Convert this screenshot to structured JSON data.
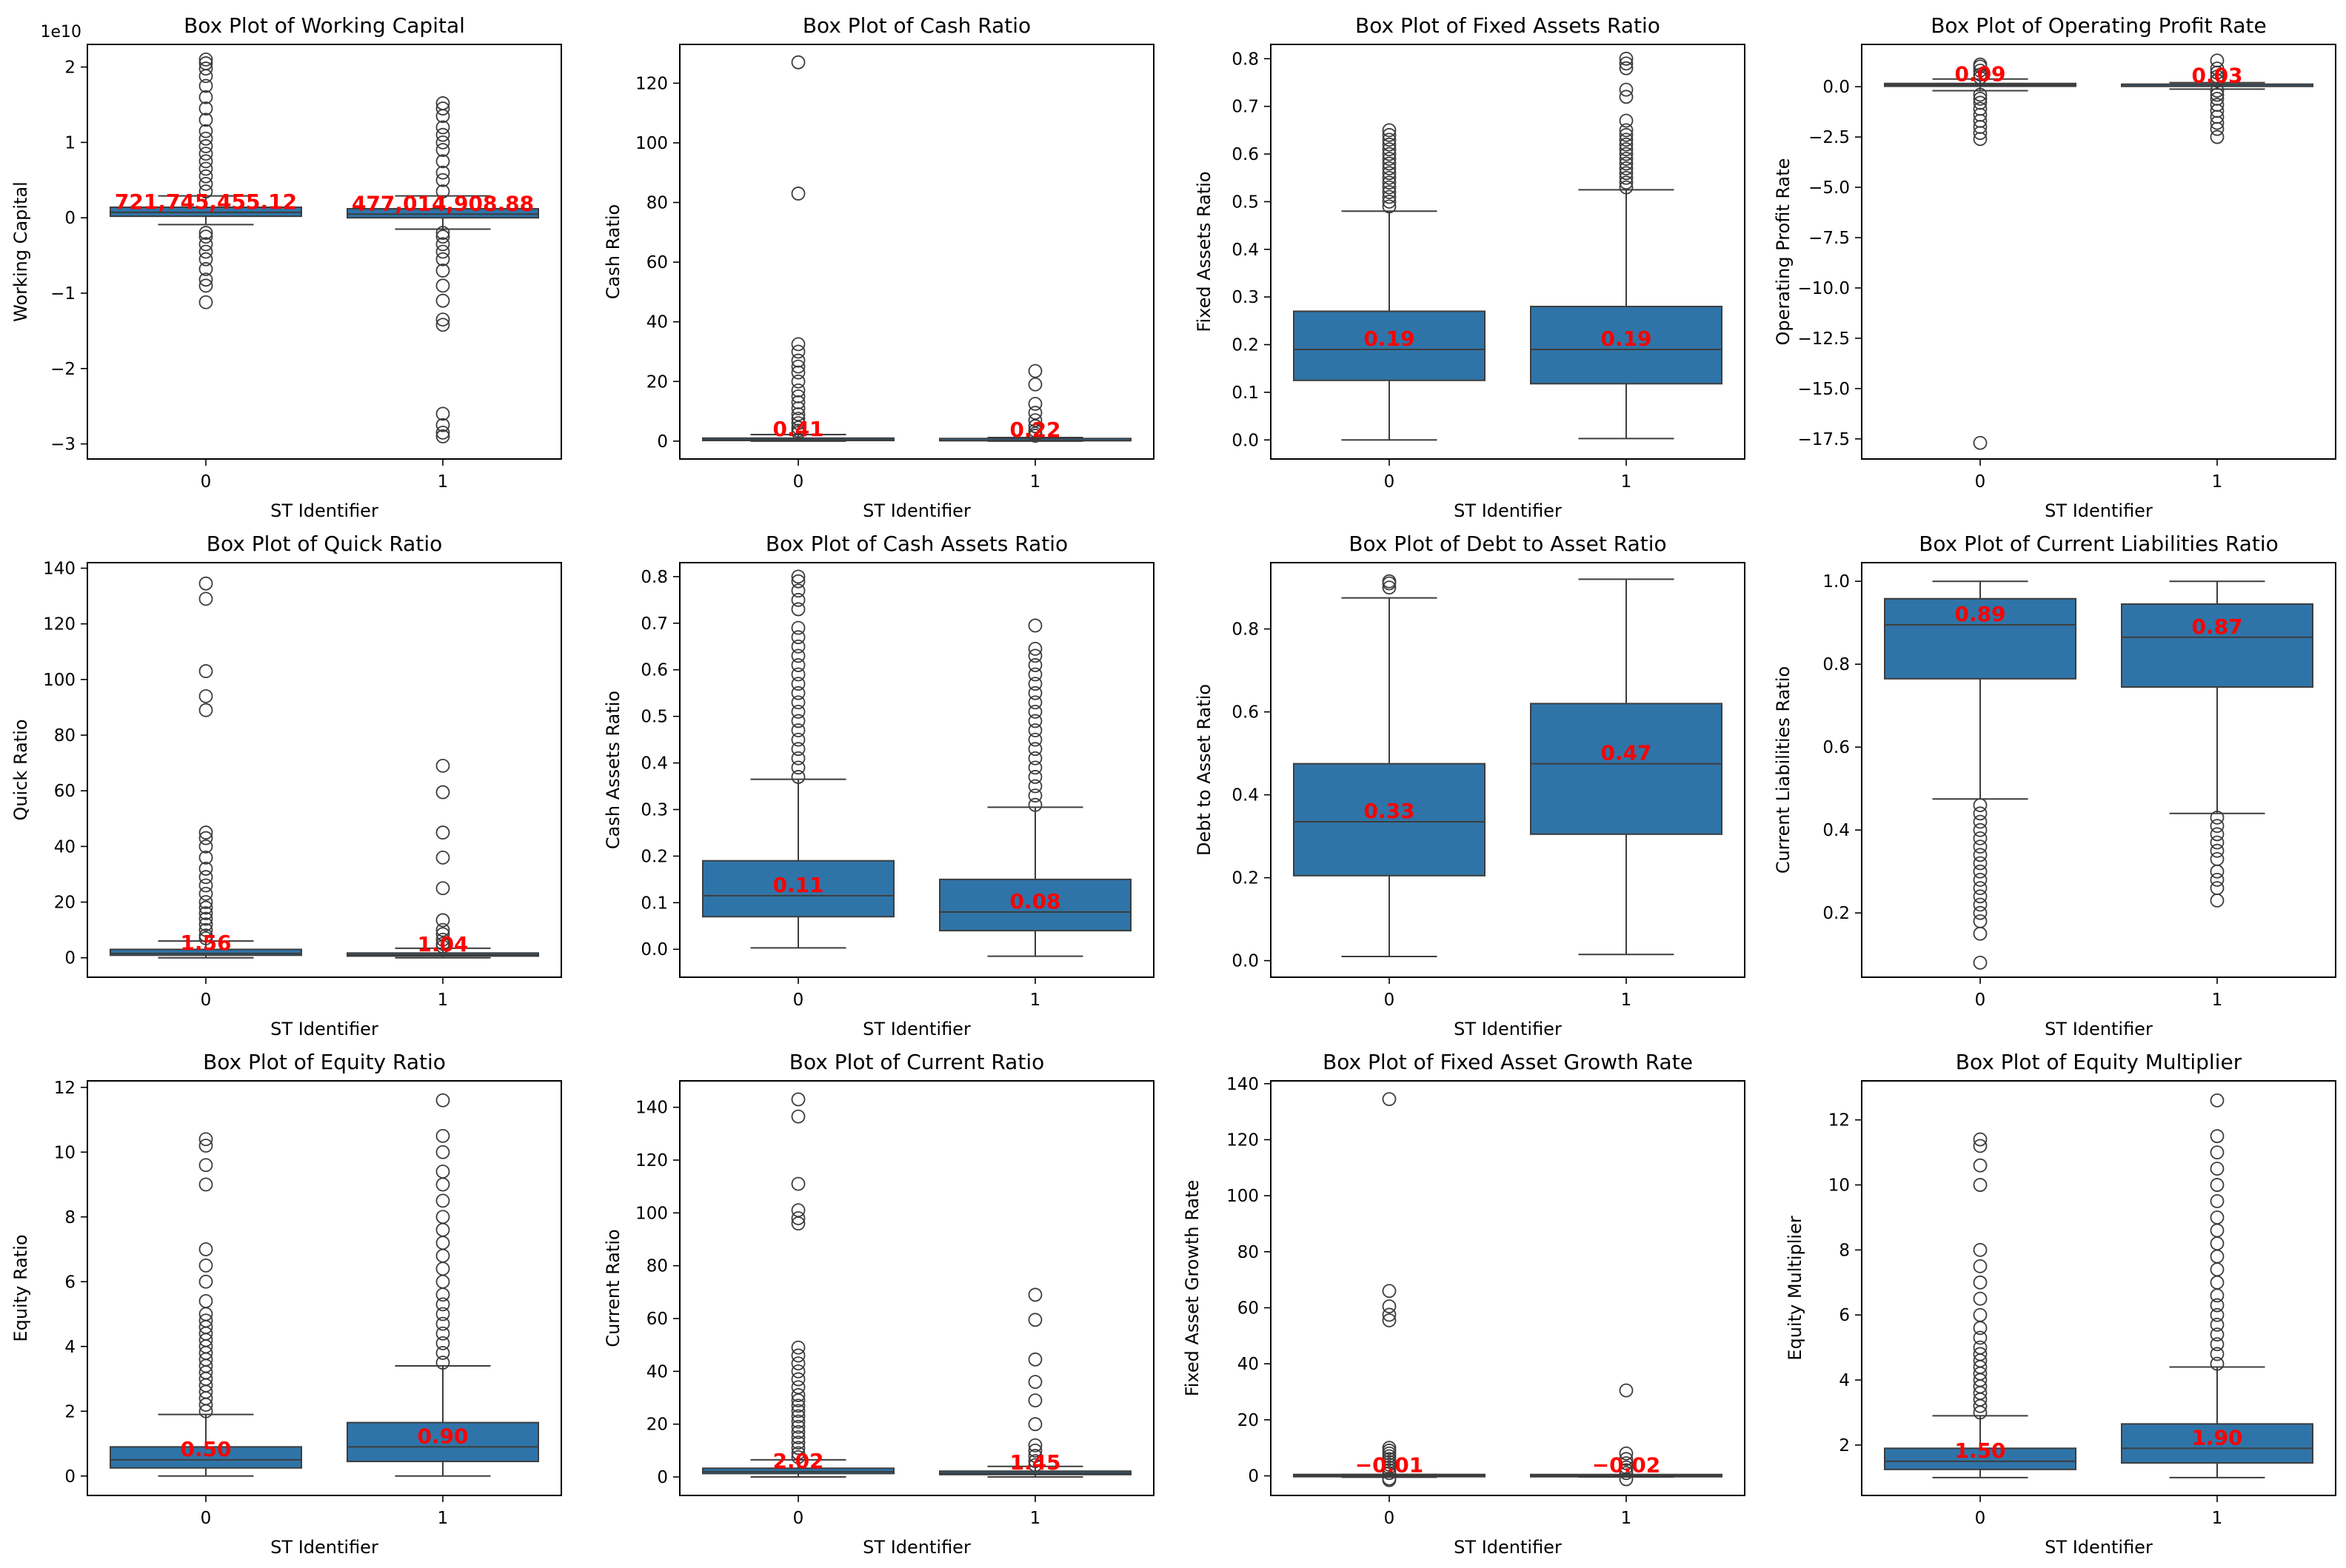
{
  "figure": {
    "colors": {
      "box_fill": "#2f74a8",
      "box_edge": "#3d3d3d",
      "whisker": "#3d3d3d",
      "median_label": "#ff0000",
      "text": "#000000"
    }
  },
  "chart_data": [
    {
      "type": "box",
      "title": "Box Plot of Working Capital",
      "xlabel": "ST Identifier",
      "ylabel": "Working Capital",
      "offset_text": "1e10",
      "categories": [
        "0",
        "1"
      ],
      "ylim": [
        -3.2,
        2.3
      ],
      "yticks": [
        -3,
        -2,
        -1,
        0,
        1,
        2
      ],
      "ytick_labels": [
        "−3",
        "−2",
        "−1",
        "0",
        "1",
        "2"
      ],
      "boxes": [
        {
          "whislo": -0.09,
          "q1": 0.02,
          "med": 0.072,
          "q3": 0.14,
          "whishi": 0.29,
          "label": "721,745,455.12",
          "fliers": [
            -1.12,
            -0.9,
            -0.82,
            -0.68,
            -0.55,
            -0.45,
            -0.35,
            -0.25,
            -0.2,
            0.35,
            0.45,
            0.55,
            0.65,
            0.75,
            0.85,
            0.95,
            1.05,
            1.15,
            1.3,
            1.45,
            1.6,
            1.75,
            1.88,
            1.98,
            2.05,
            2.1
          ]
        },
        {
          "whislo": -0.15,
          "q1": 0.0,
          "med": 0.048,
          "q3": 0.12,
          "whishi": 0.29,
          "label": "477,014,908.88",
          "fliers": [
            -2.9,
            -2.85,
            -2.75,
            -2.6,
            -1.42,
            -1.35,
            -1.1,
            -0.9,
            -0.7,
            -0.55,
            -0.45,
            -0.35,
            -0.25,
            -0.2,
            0.35,
            0.5,
            0.6,
            0.75,
            0.9,
            1.0,
            1.1,
            1.2,
            1.35,
            1.45,
            1.52
          ]
        }
      ]
    },
    {
      "type": "box",
      "title": "Box Plot of Cash Ratio",
      "xlabel": "ST Identifier",
      "ylabel": "Cash Ratio",
      "categories": [
        "0",
        "1"
      ],
      "ylim": [
        -6,
        133
      ],
      "yticks": [
        0,
        20,
        40,
        60,
        80,
        100,
        120
      ],
      "ytick_labels": [
        "0",
        "20",
        "40",
        "60",
        "80",
        "100",
        "120"
      ],
      "boxes": [
        {
          "whislo": 0.0,
          "q1": 0.2,
          "med": 0.41,
          "q3": 1.0,
          "whishi": 2.2,
          "label": "0.41",
          "fliers": [
            2.8,
            3.5,
            4.5,
            6,
            7.5,
            9,
            11,
            13,
            15,
            17,
            20,
            23,
            25,
            27,
            30,
            32.5,
            83,
            127
          ]
        },
        {
          "whislo": 0.0,
          "q1": 0.1,
          "med": 0.22,
          "q3": 0.5,
          "whishi": 1.2,
          "label": "0.22",
          "fliers": [
            1.8,
            2.5,
            3.5,
            5,
            7,
            9.5,
            12.5,
            19,
            23.5
          ]
        }
      ]
    },
    {
      "type": "box",
      "title": "Box Plot of Fixed Assets Ratio",
      "xlabel": "ST Identifier",
      "ylabel": "Fixed Assets Ratio",
      "categories": [
        "0",
        "1"
      ],
      "ylim": [
        -0.04,
        0.83
      ],
      "yticks": [
        0.0,
        0.1,
        0.2,
        0.3,
        0.4,
        0.5,
        0.6,
        0.7,
        0.8
      ],
      "ytick_labels": [
        "0.0",
        "0.1",
        "0.2",
        "0.3",
        "0.4",
        "0.5",
        "0.6",
        "0.7",
        "0.8"
      ],
      "boxes": [
        {
          "whislo": 0.0,
          "q1": 0.125,
          "med": 0.19,
          "q3": 0.27,
          "whishi": 0.48,
          "label": "0.19",
          "fliers": [
            0.49,
            0.5,
            0.51,
            0.52,
            0.53,
            0.54,
            0.55,
            0.56,
            0.57,
            0.58,
            0.59,
            0.6,
            0.61,
            0.62,
            0.63,
            0.64,
            0.65
          ]
        },
        {
          "whislo": 0.003,
          "q1": 0.118,
          "med": 0.19,
          "q3": 0.28,
          "whishi": 0.525,
          "label": "0.19",
          "fliers": [
            0.53,
            0.54,
            0.55,
            0.56,
            0.57,
            0.58,
            0.59,
            0.6,
            0.61,
            0.62,
            0.63,
            0.64,
            0.65,
            0.67,
            0.72,
            0.735,
            0.78,
            0.79,
            0.8
          ]
        }
      ]
    },
    {
      "type": "box",
      "title": "Box Plot of Operating Profit Rate",
      "xlabel": "ST Identifier",
      "ylabel": "Operating Profit Rate",
      "categories": [
        "0",
        "1"
      ],
      "ylim": [
        -18.5,
        2.1
      ],
      "yticks": [
        0,
        -2.5,
        -5,
        -7.5,
        -10,
        -12.5,
        -15,
        -17.5
      ],
      "ytick_labels": [
        "0.0",
        "−2.5",
        "−5.0",
        "−7.5",
        "−10.0",
        "−12.5",
        "−15.0",
        "−17.5"
      ],
      "boxes": [
        {
          "whislo": -0.2,
          "q1": 0.02,
          "med": 0.09,
          "q3": 0.16,
          "whishi": 0.38,
          "label": "0.09",
          "fliers": [
            -17.7,
            -2.6,
            -2.3,
            -2.0,
            -1.7,
            -1.4,
            -1.1,
            -0.8,
            -0.6,
            -0.4,
            0.45,
            0.6,
            0.8,
            1.0,
            1.1
          ]
        },
        {
          "whislo": -0.12,
          "q1": 0.0,
          "med": 0.03,
          "q3": 0.07,
          "whishi": 0.2,
          "label": "0.03",
          "fliers": [
            -2.5,
            -2.1,
            -1.8,
            -1.5,
            -1.2,
            -0.9,
            -0.6,
            -0.4,
            -0.2,
            0.3,
            0.5,
            0.7,
            0.9,
            1.3
          ]
        }
      ]
    },
    {
      "type": "box",
      "title": "Box Plot of Quick Ratio",
      "xlabel": "ST Identifier",
      "ylabel": "Quick Ratio",
      "categories": [
        "0",
        "1"
      ],
      "ylim": [
        -7,
        142
      ],
      "yticks": [
        0,
        20,
        40,
        60,
        80,
        100,
        120,
        140
      ],
      "ytick_labels": [
        "0",
        "20",
        "40",
        "60",
        "80",
        "100",
        "120",
        "140"
      ],
      "boxes": [
        {
          "whislo": 0.0,
          "q1": 0.9,
          "med": 1.56,
          "q3": 3.0,
          "whishi": 6.0,
          "label": "1.56",
          "fliers": [
            7,
            8,
            10,
            12,
            14,
            16,
            18,
            20,
            23,
            26,
            29,
            32,
            36,
            40,
            43,
            45,
            89,
            94,
            103,
            129,
            134.5
          ]
        },
        {
          "whislo": 0.0,
          "q1": 0.6,
          "med": 1.04,
          "q3": 1.7,
          "whishi": 3.4,
          "label": "1.04",
          "fliers": [
            4,
            5,
            6.5,
            8.5,
            10,
            13.5,
            25,
            36,
            45,
            59.5,
            69
          ]
        }
      ]
    },
    {
      "type": "box",
      "title": "Box Plot of Cash Assets Ratio",
      "xlabel": "ST Identifier",
      "ylabel": "Cash Assets Ratio",
      "categories": [
        "0",
        "1"
      ],
      "ylim": [
        -0.06,
        0.83
      ],
      "yticks": [
        0.0,
        0.1,
        0.2,
        0.3,
        0.4,
        0.5,
        0.6,
        0.7,
        0.8
      ],
      "ytick_labels": [
        "0.0",
        "0.1",
        "0.2",
        "0.3",
        "0.4",
        "0.5",
        "0.6",
        "0.7",
        "0.8"
      ],
      "boxes": [
        {
          "whislo": 0.003,
          "q1": 0.07,
          "med": 0.115,
          "q3": 0.19,
          "whishi": 0.365,
          "label": "0.11",
          "fliers": [
            0.37,
            0.39,
            0.41,
            0.43,
            0.45,
            0.47,
            0.49,
            0.51,
            0.53,
            0.55,
            0.57,
            0.59,
            0.61,
            0.63,
            0.65,
            0.67,
            0.69,
            0.73,
            0.75,
            0.77,
            0.79,
            0.8
          ]
        },
        {
          "whislo": -0.015,
          "q1": 0.04,
          "med": 0.08,
          "q3": 0.15,
          "whishi": 0.305,
          "label": "0.08",
          "fliers": [
            0.31,
            0.33,
            0.35,
            0.37,
            0.39,
            0.41,
            0.43,
            0.45,
            0.47,
            0.49,
            0.51,
            0.53,
            0.55,
            0.57,
            0.59,
            0.61,
            0.63,
            0.645,
            0.695
          ]
        }
      ]
    },
    {
      "type": "box",
      "title": "Box Plot of Debt to Asset Ratio",
      "xlabel": "ST Identifier",
      "ylabel": "Debt to Asset Ratio",
      "categories": [
        "0",
        "1"
      ],
      "ylim": [
        -0.04,
        0.96
      ],
      "yticks": [
        0.0,
        0.2,
        0.4,
        0.6,
        0.8
      ],
      "ytick_labels": [
        "0.0",
        "0.2",
        "0.4",
        "0.6",
        "0.8"
      ],
      "boxes": [
        {
          "whislo": 0.01,
          "q1": 0.205,
          "med": 0.335,
          "q3": 0.475,
          "whishi": 0.875,
          "label": "0.33",
          "fliers": [
            0.9,
            0.91,
            0.915
          ]
        },
        {
          "whislo": 0.015,
          "q1": 0.305,
          "med": 0.475,
          "q3": 0.62,
          "whishi": 0.92,
          "label": "0.47",
          "fliers": []
        }
      ]
    },
    {
      "type": "box",
      "title": "Box Plot of Current Liabilities Ratio",
      "xlabel": "ST Identifier",
      "ylabel": "Current Liabilities Ratio",
      "categories": [
        "0",
        "1"
      ],
      "ylim": [
        0.045,
        1.045
      ],
      "yticks": [
        0.2,
        0.4,
        0.6,
        0.8,
        1.0
      ],
      "ytick_labels": [
        "0.2",
        "0.4",
        "0.6",
        "0.8",
        "1.0"
      ],
      "boxes": [
        {
          "whislo": 0.475,
          "q1": 0.765,
          "med": 0.895,
          "q3": 0.958,
          "whishi": 1.0,
          "label": "0.89",
          "fliers": [
            0.08,
            0.15,
            0.18,
            0.2,
            0.22,
            0.24,
            0.26,
            0.28,
            0.3,
            0.32,
            0.34,
            0.36,
            0.38,
            0.4,
            0.42,
            0.44,
            0.46
          ]
        },
        {
          "whislo": 0.44,
          "q1": 0.745,
          "med": 0.865,
          "q3": 0.945,
          "whishi": 1.0,
          "label": "0.87",
          "fliers": [
            0.23,
            0.26,
            0.28,
            0.3,
            0.33,
            0.35,
            0.37,
            0.39,
            0.41,
            0.43
          ]
        }
      ]
    },
    {
      "type": "box",
      "title": "Box Plot of Equity Ratio",
      "xlabel": "ST Identifier",
      "ylabel": "Equity Ratio",
      "categories": [
        "0",
        "1"
      ],
      "ylim": [
        -0.6,
        12.2
      ],
      "yticks": [
        0,
        2,
        4,
        6,
        8,
        10,
        12
      ],
      "ytick_labels": [
        "0",
        "2",
        "4",
        "6",
        "8",
        "10",
        "12"
      ],
      "boxes": [
        {
          "whislo": 0.0,
          "q1": 0.25,
          "med": 0.5,
          "q3": 0.9,
          "whishi": 1.9,
          "label": "0.50",
          "fliers": [
            2.0,
            2.2,
            2.4,
            2.6,
            2.8,
            3.0,
            3.2,
            3.4,
            3.6,
            3.8,
            4.0,
            4.2,
            4.4,
            4.6,
            4.8,
            5.0,
            5.4,
            6.0,
            6.5,
            7.0,
            9.0,
            9.6,
            10.2,
            10.4
          ]
        },
        {
          "whislo": 0.0,
          "q1": 0.45,
          "med": 0.9,
          "q3": 1.65,
          "whishi": 3.4,
          "label": "0.90",
          "fliers": [
            3.5,
            3.8,
            4.1,
            4.4,
            4.7,
            5.0,
            5.3,
            5.6,
            6.0,
            6.4,
            6.8,
            7.2,
            7.6,
            8.0,
            8.5,
            9.0,
            9.4,
            10.0,
            10.5,
            11.6
          ]
        }
      ]
    },
    {
      "type": "box",
      "title": "Box Plot of Current Ratio",
      "xlabel": "ST Identifier",
      "ylabel": "Current Ratio",
      "categories": [
        "0",
        "1"
      ],
      "ylim": [
        -7,
        150
      ],
      "yticks": [
        0,
        20,
        40,
        60,
        80,
        100,
        120,
        140
      ],
      "ytick_labels": [
        "0",
        "20",
        "40",
        "60",
        "80",
        "100",
        "120",
        "140"
      ],
      "boxes": [
        {
          "whislo": 0.0,
          "q1": 1.3,
          "med": 2.02,
          "q3": 3.3,
          "whishi": 6.5,
          "label": "2.02",
          "fliers": [
            7.5,
            9,
            11,
            13,
            15,
            17,
            19,
            21,
            23,
            25,
            27,
            29,
            31,
            34,
            37,
            40,
            43,
            46,
            49,
            96,
            98,
            101,
            111,
            136.5,
            143
          ]
        },
        {
          "whislo": 0.0,
          "q1": 0.9,
          "med": 1.45,
          "q3": 2.2,
          "whishi": 4.0,
          "label": "1.45",
          "fliers": [
            4.5,
            6,
            8,
            10,
            12,
            20,
            29,
            36,
            44.5,
            59.5,
            69
          ]
        }
      ]
    },
    {
      "type": "box",
      "title": "Box Plot of Fixed Asset Growth Rate",
      "xlabel": "ST Identifier",
      "ylabel": "Fixed Asset Growth Rate",
      "categories": [
        "0",
        "1"
      ],
      "ylim": [
        -7,
        141
      ],
      "yticks": [
        0,
        20,
        40,
        60,
        80,
        100,
        120,
        140
      ],
      "ytick_labels": [
        "0",
        "20",
        "40",
        "60",
        "80",
        "100",
        "120",
        "140"
      ],
      "boxes": [
        {
          "whislo": -0.5,
          "q1": -0.1,
          "med": -0.01,
          "q3": 0.1,
          "whishi": 0.5,
          "label": "−0.01",
          "fliers": [
            -1.5,
            -1,
            1,
            2,
            3,
            4,
            5,
            6,
            7,
            8,
            9,
            10,
            55.5,
            57.5,
            60.5,
            66,
            134.5
          ]
        },
        {
          "whislo": -0.4,
          "q1": -0.1,
          "med": -0.02,
          "q3": 0.08,
          "whishi": 0.4,
          "label": "−0.02",
          "fliers": [
            -1.2,
            1,
            2,
            3,
            4.5,
            6,
            8,
            30.5
          ]
        }
      ]
    },
    {
      "type": "box",
      "title": "Box Plot of Equity Multiplier",
      "xlabel": "ST Identifier",
      "ylabel": "Equity Multiplier",
      "categories": [
        "0",
        "1"
      ],
      "ylim": [
        0.45,
        13.2
      ],
      "yticks": [
        2,
        4,
        6,
        8,
        10,
        12
      ],
      "ytick_labels": [
        "2",
        "4",
        "6",
        "8",
        "10",
        "12"
      ],
      "boxes": [
        {
          "whislo": 1.0,
          "q1": 1.25,
          "med": 1.5,
          "q3": 1.9,
          "whishi": 2.9,
          "label": "1.50",
          "fliers": [
            3.0,
            3.2,
            3.4,
            3.6,
            3.8,
            4.0,
            4.2,
            4.4,
            4.6,
            4.8,
            5.0,
            5.3,
            5.6,
            6.0,
            6.5,
            7.0,
            7.5,
            8.0,
            10.0,
            10.6,
            11.2,
            11.4
          ]
        },
        {
          "whislo": 1.0,
          "q1": 1.45,
          "med": 1.9,
          "q3": 2.65,
          "whishi": 4.4,
          "label": "1.90",
          "fliers": [
            4.5,
            4.8,
            5.1,
            5.4,
            5.7,
            6.0,
            6.3,
            6.6,
            7.0,
            7.4,
            7.8,
            8.2,
            8.6,
            9.0,
            9.5,
            10.0,
            10.5,
            11.0,
            11.5,
            12.6
          ]
        }
      ]
    }
  ]
}
